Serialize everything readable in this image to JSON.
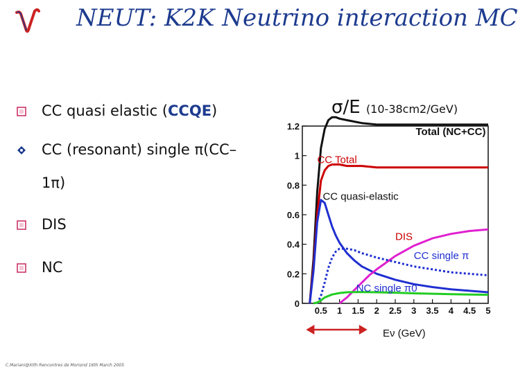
{
  "slide": {
    "title": "NEUT: K2K Neutrino interaction MC",
    "logo": "nu-logo",
    "bullets": [
      {
        "marker": "square-bullet-icon",
        "pre": "CC quasi elastic (",
        "hl": "CCQE",
        "post": ")"
      },
      {
        "marker": "diamond-bullet-icon",
        "pre": "CC (resonant) single π(CC–",
        "hl": "",
        "post": ""
      },
      {
        "marker": "",
        "pre": "1π)",
        "hl": "",
        "post": ""
      },
      {
        "marker": "square-bullet-icon",
        "pre": "DIS",
        "hl": "",
        "post": ""
      },
      {
        "marker": "square-bullet-icon",
        "pre": "NC",
        "hl": "",
        "post": ""
      }
    ],
    "sigma_label": {
      "main": "σ/E",
      "unit": "(10-38cm2/GeV)"
    },
    "footer": "C.Mariani@XIth Rencontres de Moriond 16th March 2005"
  },
  "chart_data": {
    "type": "line",
    "title": "",
    "xlabel": "Eν (GeV)",
    "ylabel": "σ/E (10-38cm2/GeV)",
    "xlim": [
      0,
      5
    ],
    "ylim": [
      0,
      1.2
    ],
    "xticks": [
      0.5,
      1,
      1.5,
      2,
      2.5,
      3,
      3.5,
      4,
      4.5,
      5
    ],
    "xtick_labels": [
      "0.5",
      "1",
      "1.5",
      "2",
      "2.5",
      "3",
      "3.5",
      "4",
      "4.5",
      "5"
    ],
    "yticks": [
      0,
      0.2,
      0.4,
      0.6,
      0.8,
      1,
      1.2
    ],
    "ytick_labels": [
      "0",
      "0.2",
      "0.4",
      "0.6",
      "0.8",
      "1",
      "1.2"
    ],
    "grid": false,
    "series": [
      {
        "name": "Total (NC+CC)",
        "color": "#111111",
        "dash": "solid",
        "x": [
          0.2,
          0.3,
          0.4,
          0.5,
          0.6,
          0.7,
          0.8,
          0.9,
          1.0,
          1.2,
          1.4,
          1.6,
          2.0,
          2.5,
          3.0,
          3.5,
          4.0,
          4.5,
          5.0
        ],
        "y": [
          0.0,
          0.3,
          0.75,
          1.05,
          1.18,
          1.24,
          1.26,
          1.26,
          1.25,
          1.24,
          1.23,
          1.22,
          1.21,
          1.21,
          1.21,
          1.21,
          1.21,
          1.21,
          1.21
        ]
      },
      {
        "name": "CC Total",
        "color": "#cc0000",
        "dash": "solid",
        "x": [
          0.2,
          0.3,
          0.4,
          0.5,
          0.6,
          0.7,
          0.8,
          0.9,
          1.0,
          1.2,
          1.4,
          1.6,
          2.0,
          2.5,
          3.0,
          3.5,
          4.0,
          4.5,
          5.0
        ],
        "y": [
          0.0,
          0.25,
          0.6,
          0.83,
          0.9,
          0.93,
          0.94,
          0.94,
          0.94,
          0.93,
          0.93,
          0.93,
          0.92,
          0.92,
          0.92,
          0.92,
          0.92,
          0.92,
          0.92
        ]
      },
      {
        "name": "CC quasi-elastic",
        "color": "#1f2fd0",
        "dash": "solid",
        "x": [
          0.2,
          0.3,
          0.4,
          0.5,
          0.6,
          0.7,
          0.8,
          0.9,
          1.0,
          1.2,
          1.4,
          1.6,
          2.0,
          2.5,
          3.0,
          3.5,
          4.0,
          4.5,
          5.0
        ],
        "y": [
          0.0,
          0.22,
          0.55,
          0.7,
          0.68,
          0.6,
          0.52,
          0.46,
          0.41,
          0.34,
          0.29,
          0.25,
          0.2,
          0.16,
          0.13,
          0.11,
          0.095,
          0.085,
          0.075
        ]
      },
      {
        "name": "DIS",
        "color": "#e020d0",
        "dash": "solid",
        "x": [
          1.0,
          1.2,
          1.4,
          1.6,
          1.8,
          2.0,
          2.5,
          3.0,
          3.5,
          4.0,
          4.5,
          5.0
        ],
        "y": [
          0.0,
          0.04,
          0.09,
          0.14,
          0.19,
          0.23,
          0.32,
          0.39,
          0.44,
          0.47,
          0.49,
          0.5
        ]
      },
      {
        "name": "CC single π",
        "color": "#1f2fd0",
        "dash": "dotted",
        "x": [
          0.4,
          0.5,
          0.6,
          0.7,
          0.8,
          0.9,
          1.0,
          1.2,
          1.4,
          1.6,
          2.0,
          2.5,
          3.0,
          3.5,
          4.0,
          4.5,
          5.0
        ],
        "y": [
          0.0,
          0.05,
          0.14,
          0.24,
          0.31,
          0.35,
          0.37,
          0.37,
          0.36,
          0.34,
          0.31,
          0.28,
          0.25,
          0.23,
          0.21,
          0.2,
          0.19
        ]
      },
      {
        "name": "NC single π0",
        "color": "#22cc22",
        "dash": "solid",
        "x": [
          0.3,
          0.4,
          0.5,
          0.6,
          0.8,
          1.0,
          1.2,
          1.5,
          2.0,
          2.5,
          3.0,
          3.5,
          4.0,
          4.5,
          5.0
        ],
        "y": [
          0.0,
          0.005,
          0.02,
          0.04,
          0.06,
          0.07,
          0.075,
          0.077,
          0.075,
          0.072,
          0.068,
          0.065,
          0.062,
          0.06,
          0.058
        ]
      }
    ],
    "annotations": [
      {
        "text": "Total (NC+CC)",
        "color": "#111111",
        "x": 3.05,
        "y": 1.14
      },
      {
        "text": "CC Total",
        "color": "#cc0000",
        "x": 0.4,
        "y": 0.95
      },
      {
        "text": "CC quasi-elastic",
        "color": "#111111",
        "x": 0.55,
        "y": 0.7
      },
      {
        "text": "DIS",
        "color": "#cc0000",
        "x": 2.5,
        "y": 0.43
      },
      {
        "text": "CC single π",
        "color": "#1f2fd0",
        "x": 3.0,
        "y": 0.3
      },
      {
        "text": "NC single π0",
        "color": "#1f2fd0",
        "x": 1.45,
        "y": 0.08
      }
    ],
    "range_arrow": {
      "x0": 0.1,
      "x1": 1.75,
      "color": "#cc2222"
    }
  }
}
